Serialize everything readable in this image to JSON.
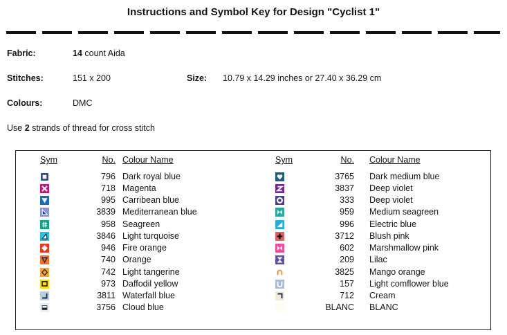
{
  "title": "Instructions and Symbol Key for Design \"Cyclist 1\"",
  "fields": {
    "fabric_label": "Fabric:",
    "fabric_value_bold": "14",
    "fabric_value_rest": " count Aida",
    "stitches_label": "Stitches:",
    "stitches_value": "151 x 200",
    "size_label": "Size:",
    "size_value": "10.79 x 14.29 inches or 27.40 x 36.29 cm",
    "colours_label": "Colours:",
    "colours_value": "DMC",
    "note_prefix": "Use ",
    "note_bold": "2",
    "note_suffix": " strands of thread for cross stitch"
  },
  "key_table": {
    "headers": [
      "Sym",
      "No.",
      "Colour Name"
    ],
    "left_rows": [
      {
        "sym": {
          "glyph": "square-outline-icon",
          "bg": "#ffffff",
          "fg": "#2e3f8f"
        },
        "no": "796",
        "name": "Dark royal blue"
      },
      {
        "sym": {
          "glyph": "x-icon",
          "bg": "#b81878",
          "fg": "#ffffff"
        },
        "no": "718",
        "name": "Magenta"
      },
      {
        "sym": {
          "glyph": "triangle-down-icon",
          "bg": "#1a6bbc",
          "fg": "#ffffff"
        },
        "no": "995",
        "name": "Carribean blue"
      },
      {
        "sym": {
          "glyph": "corner-triangle-outlined-icon",
          "bg": "#8995cf",
          "fg": "#27357e"
        },
        "no": "3839",
        "name": "Mediterranean blue"
      },
      {
        "sym": {
          "glyph": "sharp-icon",
          "bg": "#12a188",
          "fg": "#ffffff"
        },
        "no": "958",
        "name": "Seagreen"
      },
      {
        "sym": {
          "glyph": "triangle-outline-icon",
          "bg": "#27c2d8",
          "fg": "#1a2f75"
        },
        "no": "3846",
        "name": "Light turquoise"
      },
      {
        "sym": {
          "glyph": "diamond-icon",
          "bg": "#ea3a23",
          "fg": "#ffffff"
        },
        "no": "946",
        "name": "Fire orange"
      },
      {
        "sym": {
          "glyph": "triangle-down-outline-icon",
          "bg": "#f3722a",
          "fg": "#1b2030"
        },
        "no": "740",
        "name": "Orange"
      },
      {
        "sym": {
          "glyph": "diamond-outline-icon",
          "bg": "#f7a42c",
          "fg": "#1b2030"
        },
        "no": "742",
        "name": "Light tangerine"
      },
      {
        "sym": {
          "glyph": "square-small-outline-icon",
          "bg": "#ffd90a",
          "fg": "#1b2030"
        },
        "no": "973",
        "name": "Daffodil yellow"
      },
      {
        "sym": {
          "glyph": "corner-bottom-right-icon",
          "bg": "#b9cfda",
          "fg": "#1b2e5e"
        },
        "no": "3811",
        "name": "Waterfall blue"
      },
      {
        "sym": {
          "glyph": "underlined-bar-icon",
          "bg": "#eaf1f6",
          "fg": "#1b2233"
        },
        "no": "3756",
        "name": "Cloud blue"
      }
    ],
    "right_rows": [
      {
        "sym": {
          "glyph": "heart-icon",
          "bg": "#1d5d78",
          "fg": "#ffffff"
        },
        "no": "3765",
        "name": "Dark medium blue"
      },
      {
        "sym": {
          "glyph": "z-icon",
          "bg": "#70288f",
          "fg": "#ffffff"
        },
        "no": "3837",
        "name": "Deep violet"
      },
      {
        "sym": {
          "glyph": "ring-icon",
          "bg": "#4a3d94",
          "fg": "#ffffff"
        },
        "no": "333",
        "name": "Deep violet"
      },
      {
        "sym": {
          "glyph": "bowtie-icon",
          "bg": "#2aa89e",
          "fg": "#ffffff"
        },
        "no": "959",
        "name": "Medium seagreen"
      },
      {
        "sym": {
          "glyph": "corner-triangle-filled-icon",
          "bg": "#2bacdf",
          "fg": "#ffffff"
        },
        "no": "996",
        "name": "Electric blue"
      },
      {
        "sym": {
          "glyph": "plus-icon",
          "bg": "#e25f63",
          "fg": "#111111"
        },
        "no": "3712",
        "name": "Blush pink"
      },
      {
        "sym": {
          "glyph": "bowtie-icon",
          "bg": "#ee4f9d",
          "fg": "#ffffff"
        },
        "no": "602",
        "name": "Marshmallow pink"
      },
      {
        "sym": {
          "glyph": "hourglass-icon",
          "bg": "#5f51a0",
          "fg": "#ffffff"
        },
        "no": "209",
        "name": "Lilac"
      },
      {
        "sym": {
          "glyph": "arch-icon",
          "bg": "#ffffff",
          "fg": "#f08a3c"
        },
        "no": "3825",
        "name": "Mango orange"
      },
      {
        "sym": {
          "glyph": "u-icon",
          "bg": "#a9b9da",
          "fg": "#ffffff"
        },
        "no": "157",
        "name": "Light comflower blue"
      },
      {
        "sym": {
          "glyph": "corner-top-right-icon",
          "bg": "#f2ebd2",
          "fg": "#1b2e5e"
        },
        "no": "712",
        "name": "Cream"
      },
      {
        "sym": {
          "glyph": "blank-icon",
          "bg": "#fdfcf5",
          "fg": "#fdfcf5"
        },
        "no": "BLANC",
        "name": "BLANC"
      }
    ]
  }
}
